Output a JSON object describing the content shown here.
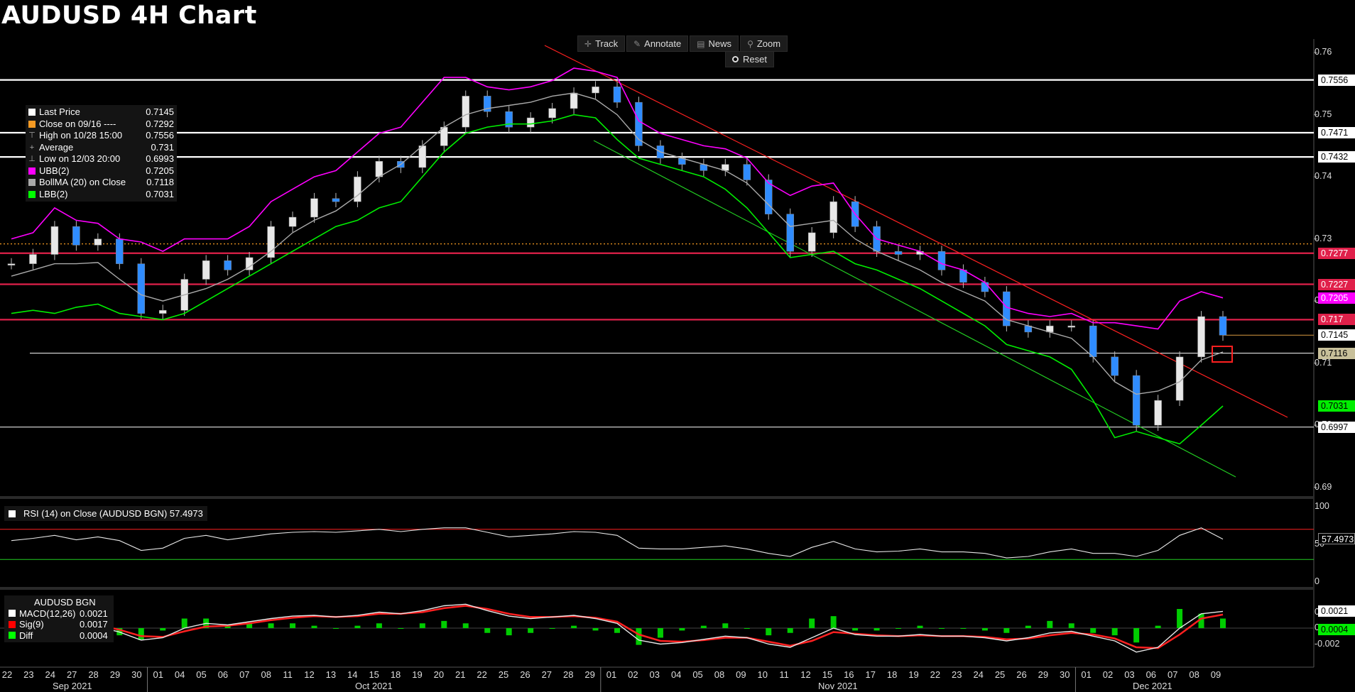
{
  "title": "AUDUSD 4H Chart",
  "toolbar": {
    "buttons": [
      {
        "label": "Track",
        "icon": "crosshair-icon",
        "glyph": "✛"
      },
      {
        "label": "Annotate",
        "icon": "pencil-icon",
        "glyph": "✎"
      },
      {
        "label": "News",
        "icon": "news-icon",
        "glyph": "▤"
      },
      {
        "label": "Zoom",
        "icon": "magnifier-icon",
        "glyph": "⚲"
      }
    ],
    "reset_label": "Reset"
  },
  "legend": [
    {
      "label": "Last Price",
      "value": "0.7145",
      "swatch": "#ffffff",
      "glyph": ""
    },
    {
      "label": "Close on 09/16 ----",
      "value": "0.7292",
      "swatch": "#f59a23",
      "glyph": ""
    },
    {
      "label": "High on 10/28 15:00",
      "value": "0.7556",
      "swatch": "",
      "glyph": "⊤"
    },
    {
      "label": "Average",
      "value": "0.731",
      "swatch": "",
      "glyph": "+"
    },
    {
      "label": "Low on 12/03 20:00",
      "value": "0.6993",
      "swatch": "",
      "glyph": "⊥"
    },
    {
      "label": "UBB(2)",
      "value": "0.7205",
      "swatch": "#ff00ff",
      "glyph": ""
    },
    {
      "label": "BollMA (20)  on Close",
      "value": "0.7118",
      "swatch": "#aaaaaa",
      "glyph": ""
    },
    {
      "label": "LBB(2)",
      "value": "0.7031",
      "swatch": "#00ff00",
      "glyph": ""
    }
  ],
  "rsi_legend": "RSI (14)  on Close (AUDUSD BGN) 57.4973",
  "macd_legend": {
    "title": "AUDUSD BGN",
    "rows": [
      {
        "label": "MACD(12,26)",
        "value": "0.0021",
        "swatch": "#ffffff"
      },
      {
        "label": "Sig(9)",
        "value": "0.0017",
        "swatch": "#ff0000"
      },
      {
        "label": "Diff",
        "value": "0.0004",
        "swatch": "#00ff00"
      }
    ]
  },
  "price_tags": [
    {
      "label": "0.7556",
      "value": 0.7556,
      "bg": "#ffffff",
      "fg": "#000000"
    },
    {
      "label": "0.7471",
      "value": 0.7471,
      "bg": "#ffffff",
      "fg": "#000000"
    },
    {
      "label": "0.7432",
      "value": 0.7432,
      "bg": "#ffffff",
      "fg": "#000000"
    },
    {
      "label": "0.7277",
      "value": 0.7277,
      "bg": "#e0204a",
      "fg": "#ffffff"
    },
    {
      "label": "0.7227",
      "value": 0.7227,
      "bg": "#e0204a",
      "fg": "#ffffff"
    },
    {
      "label": "0.7205",
      "value": 0.7205,
      "bg": "#ff00ff",
      "fg": "#ffffff"
    },
    {
      "label": "0.717",
      "value": 0.717,
      "bg": "#e0204a",
      "fg": "#ffffff"
    },
    {
      "label": "0.7145",
      "value": 0.7145,
      "bg": "#ffffff",
      "fg": "#000000"
    },
    {
      "label": "0.7116",
      "value": 0.7116,
      "bg": "#c8c09a",
      "fg": "#000000"
    },
    {
      "label": "0.7031",
      "value": 0.7031,
      "bg": "#00ee00",
      "fg": "#000000"
    },
    {
      "label": "0.6997",
      "value": 0.6997,
      "bg": "#ffffff",
      "fg": "#000000"
    }
  ],
  "rsi_tag": {
    "label": "57.4973",
    "value": 57.4973
  },
  "macd_tags": [
    {
      "label": "0.0021",
      "value": 0.0021,
      "bg": "#ffffff",
      "fg": "#000000"
    },
    {
      "label": "0.0004",
      "value": 0.0004,
      "bg": "#00ee00",
      "fg": "#000000"
    }
  ],
  "chart_data": {
    "type": "line",
    "title": "AUDUSD 4H Chart",
    "y_ticks": [
      "0.76",
      "0.75",
      "0.74",
      "0.73",
      "0.72",
      "0.71",
      "0.70",
      "0.69"
    ],
    "ylim": [
      0.6895,
      0.7615
    ],
    "rsi_ticks": [
      "100",
      "50",
      "0"
    ],
    "rsi_levels": [
      70,
      30
    ],
    "macd_ticks": [
      "0.002",
      "0",
      "-0.002"
    ],
    "x_ticks": [
      "22",
      "23",
      "24",
      "27",
      "28",
      "29",
      "30",
      "01",
      "04",
      "05",
      "06",
      "07",
      "08",
      "11",
      "12",
      "13",
      "14",
      "15",
      "18",
      "19",
      "20",
      "21",
      "22",
      "25",
      "26",
      "27",
      "28",
      "29",
      "01",
      "02",
      "03",
      "04",
      "05",
      "08",
      "09",
      "10",
      "11",
      "12",
      "15",
      "16",
      "17",
      "18",
      "19",
      "22",
      "23",
      "24",
      "25",
      "26",
      "29",
      "30",
      "01",
      "02",
      "03",
      "06",
      "07",
      "08",
      "09"
    ],
    "months": [
      "Sep 2021",
      "Oct 2021",
      "Nov 2021",
      "Dec 2021"
    ],
    "horizontal_levels": [
      {
        "value": 0.7556,
        "color": "#ffffff"
      },
      {
        "value": 0.7471,
        "color": "#ffffff"
      },
      {
        "value": 0.7432,
        "color": "#ffffff"
      },
      {
        "value": 0.7292,
        "color": "#f59a23",
        "style": "dotted"
      },
      {
        "value": 0.7277,
        "color": "#e0204a"
      },
      {
        "value": 0.7227,
        "color": "#e0204a"
      },
      {
        "value": 0.717,
        "color": "#e0204a"
      },
      {
        "value": 0.7116,
        "color": "#ffffff"
      },
      {
        "value": 0.6997,
        "color": "#ffffff"
      }
    ],
    "price_series": [
      0.726,
      0.7275,
      0.732,
      0.729,
      0.73,
      0.726,
      0.718,
      0.7185,
      0.7235,
      0.7265,
      0.725,
      0.727,
      0.732,
      0.7335,
      0.7365,
      0.736,
      0.74,
      0.7425,
      0.7415,
      0.745,
      0.748,
      0.753,
      0.7505,
      0.748,
      0.7495,
      0.751,
      0.7535,
      0.7545,
      0.752,
      0.745,
      0.743,
      0.742,
      0.741,
      0.742,
      0.7395,
      0.734,
      0.728,
      0.731,
      0.736,
      0.732,
      0.728,
      0.7275,
      0.728,
      0.725,
      0.723,
      0.7215,
      0.716,
      0.715,
      0.716,
      0.716,
      0.711,
      0.708,
      0.7,
      0.704,
      0.711,
      0.7175,
      0.7145
    ],
    "ubb_series": [
      0.73,
      0.731,
      0.735,
      0.733,
      0.7325,
      0.73,
      0.7295,
      0.728,
      0.73,
      0.73,
      0.73,
      0.732,
      0.736,
      0.738,
      0.74,
      0.741,
      0.744,
      0.747,
      0.748,
      0.752,
      0.756,
      0.756,
      0.7545,
      0.754,
      0.7545,
      0.7555,
      0.7575,
      0.757,
      0.756,
      0.749,
      0.747,
      0.746,
      0.745,
      0.7445,
      0.743,
      0.739,
      0.737,
      0.7385,
      0.739,
      0.734,
      0.73,
      0.729,
      0.728,
      0.726,
      0.725,
      0.723,
      0.719,
      0.718,
      0.7175,
      0.718,
      0.7165,
      0.7165,
      0.716,
      0.7155,
      0.72,
      0.7215,
      0.7205
    ],
    "bollma_series": [
      0.724,
      0.725,
      0.726,
      0.726,
      0.7262,
      0.7235,
      0.721,
      0.72,
      0.721,
      0.722,
      0.7235,
      0.7255,
      0.728,
      0.731,
      0.733,
      0.7345,
      0.737,
      0.74,
      0.742,
      0.745,
      0.748,
      0.75,
      0.751,
      0.7515,
      0.752,
      0.753,
      0.7535,
      0.7525,
      0.75,
      0.746,
      0.744,
      0.743,
      0.742,
      0.741,
      0.739,
      0.7355,
      0.732,
      0.7325,
      0.733,
      0.73,
      0.728,
      0.7265,
      0.725,
      0.723,
      0.7215,
      0.72,
      0.717,
      0.716,
      0.715,
      0.714,
      0.711,
      0.707,
      0.705,
      0.7055,
      0.707,
      0.7105,
      0.7118
    ],
    "lbb_series": [
      0.718,
      0.7185,
      0.718,
      0.719,
      0.7195,
      0.718,
      0.7175,
      0.717,
      0.718,
      0.72,
      0.722,
      0.724,
      0.726,
      0.728,
      0.73,
      0.732,
      0.733,
      0.735,
      0.736,
      0.74,
      0.744,
      0.747,
      0.748,
      0.7485,
      0.7485,
      0.749,
      0.75,
      0.7495,
      0.746,
      0.743,
      0.742,
      0.741,
      0.74,
      0.738,
      0.735,
      0.731,
      0.727,
      0.7275,
      0.728,
      0.726,
      0.725,
      0.7235,
      0.722,
      0.72,
      0.718,
      0.716,
      0.713,
      0.712,
      0.711,
      0.709,
      0.704,
      0.698,
      0.699,
      0.698,
      0.697,
      0.7,
      0.7031
    ],
    "rsi_series": [
      55,
      58,
      62,
      56,
      60,
      55,
      42,
      45,
      58,
      62,
      56,
      60,
      64,
      66,
      67,
      66,
      68,
      70,
      67,
      70,
      72,
      72,
      66,
      60,
      62,
      64,
      67,
      66,
      62,
      45,
      44,
      44,
      46,
      48,
      44,
      38,
      34,
      46,
      54,
      44,
      40,
      41,
      44,
      40,
      40,
      38,
      32,
      34,
      40,
      44,
      38,
      38,
      34,
      42,
      62,
      72,
      57
    ],
    "macd_series": [
      0.0005,
      0.0008,
      0.001,
      0.0005,
      0.0002,
      -0.0005,
      -0.0015,
      -0.0012,
      0.0,
      0.0006,
      0.0004,
      0.0008,
      0.0012,
      0.0015,
      0.0016,
      0.0014,
      0.0016,
      0.002,
      0.0018,
      0.0022,
      0.0028,
      0.003,
      0.0022,
      0.0015,
      0.0012,
      0.0014,
      0.0016,
      0.0012,
      0.0006,
      -0.0015,
      -0.002,
      -0.0018,
      -0.0014,
      -0.001,
      -0.0012,
      -0.002,
      -0.0024,
      -0.0012,
      0.0,
      -0.0008,
      -0.001,
      -0.001,
      -0.0008,
      -0.001,
      -0.001,
      -0.0012,
      -0.0016,
      -0.0012,
      -0.0006,
      -0.0004,
      -0.001,
      -0.0016,
      -0.003,
      -0.0024,
      0.0,
      0.0018,
      0.0021
    ],
    "sig_series": [
      0.0004,
      0.0006,
      0.0008,
      0.0007,
      0.0004,
      -0.0002,
      -0.001,
      -0.0011,
      -0.0004,
      0.0002,
      0.0003,
      0.0006,
      0.001,
      0.0013,
      0.0015,
      0.0014,
      0.0015,
      0.0018,
      0.0018,
      0.002,
      0.0025,
      0.0028,
      0.0024,
      0.0018,
      0.0014,
      0.0014,
      0.0015,
      0.0013,
      0.0008,
      -0.0008,
      -0.0016,
      -0.0017,
      -0.0015,
      -0.0012,
      -0.0012,
      -0.0017,
      -0.0022,
      -0.0016,
      -0.0005,
      -0.0007,
      -0.0009,
      -0.001,
      -0.0009,
      -0.001,
      -0.001,
      -0.0011,
      -0.0014,
      -0.0013,
      -0.0009,
      -0.0006,
      -0.0008,
      -0.0013,
      -0.0024,
      -0.0025,
      -0.0008,
      0.0012,
      0.0017
    ]
  }
}
